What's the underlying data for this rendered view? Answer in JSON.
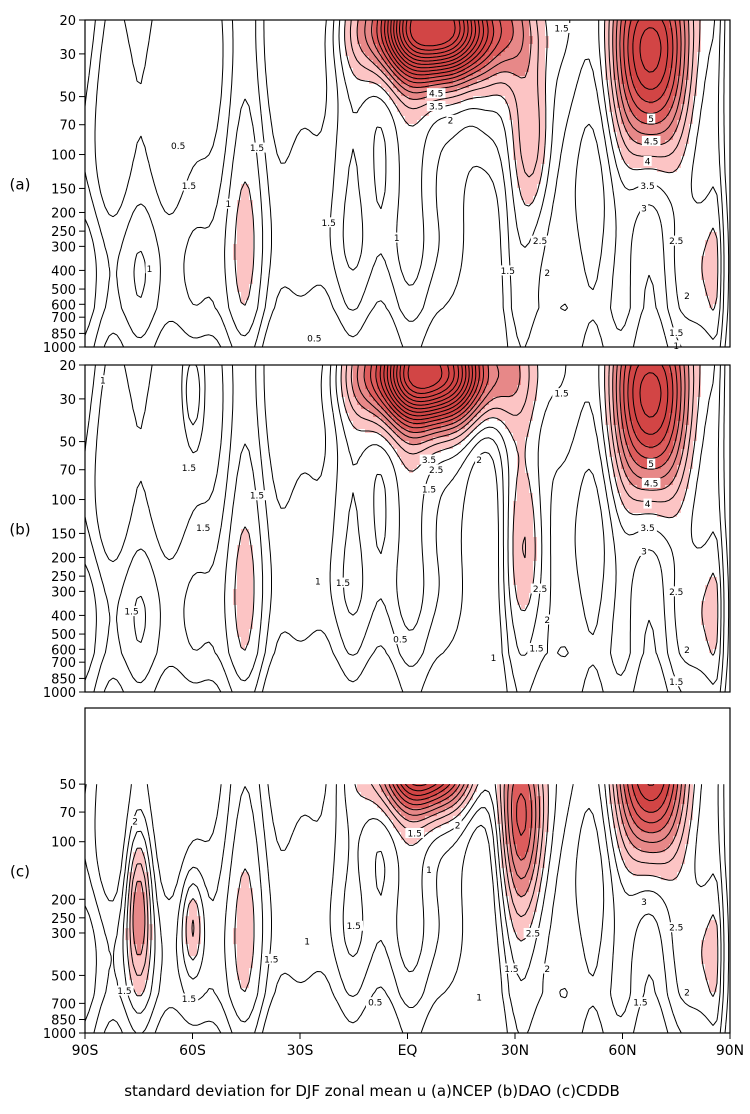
{
  "caption": "standard deviation for DJF zonal mean u (a)NCEP (b)DAO (c)CDDB",
  "colors": {
    "frame": "#000000",
    "contour": "#000000",
    "fill_levels": [
      {
        "min": 2,
        "color": "#fcc4c4"
      },
      {
        "min": 3,
        "color": "#e78888"
      },
      {
        "min": 4,
        "color": "#dd5c5c"
      },
      {
        "min": 5,
        "color": "#d24545"
      }
    ]
  },
  "chart_data": {
    "type": "contour",
    "variable": "standard deviation of DJF zonal mean u",
    "contour_interval": 0.5,
    "shading": "values >= 2 shaded in graduated reds",
    "x_ticks": [
      {
        "lat": -90,
        "label": "90S"
      },
      {
        "lat": -60,
        "label": "60S"
      },
      {
        "lat": -30,
        "label": "30S"
      },
      {
        "lat": 0,
        "label": "EQ"
      },
      {
        "lat": 30,
        "label": "30N"
      },
      {
        "lat": 60,
        "label": "60N"
      },
      {
        "lat": 90,
        "label": "90N"
      }
    ],
    "xlim": [
      -90,
      90
    ],
    "y_axis": "pressure (log scale, reversed)",
    "panels": [
      {
        "id": "a",
        "label": "(a)",
        "ylim": [
          1000,
          20
        ],
        "y_ticks": [
          "20",
          "30",
          "50",
          "70",
          "100",
          "150",
          "200",
          "250",
          "300",
          "400",
          "500",
          "600",
          "700",
          "850",
          "1000"
        ],
        "data_top_p": 20,
        "blobs": [
          {
            "lat": 8,
            "p": 22,
            "w": 18,
            "hu": 1.05,
            "hd": 0.62,
            "amp": 9.5,
            "tilt": 0
          },
          {
            "lat": 68,
            "p": 30,
            "w": 10,
            "hu": 1.2,
            "hd": 1.4,
            "amp": 6.4,
            "tilt": 0
          },
          {
            "lat": 35,
            "p": 90,
            "w": 5.5,
            "hu": 1.0,
            "hd": 1.0,
            "amp": 1.7,
            "tilt": 0
          },
          {
            "lat": 22,
            "p": 60,
            "w": 5,
            "hu": 1.0,
            "hd": 1.2,
            "amp": 1.0,
            "tilt": 0
          }
        ],
        "labels": [
          {
            "lat": 8,
            "p": 48,
            "text": "4.5"
          },
          {
            "lat": 8,
            "p": 56,
            "text": "3.5"
          },
          {
            "lat": 12,
            "p": 66,
            "text": "2"
          },
          {
            "lat": 68,
            "p": 65,
            "text": "5"
          },
          {
            "lat": 68,
            "p": 85,
            "text": "4.5"
          },
          {
            "lat": 67,
            "p": 108,
            "text": "4"
          },
          {
            "lat": 67,
            "p": 145,
            "text": "3.5"
          },
          {
            "lat": 66,
            "p": 190,
            "text": "3"
          },
          {
            "lat": 75,
            "p": 280,
            "text": "2.5"
          },
          {
            "lat": 37,
            "p": 280,
            "text": "2.5"
          },
          {
            "lat": 39,
            "p": 410,
            "text": "2"
          },
          {
            "lat": 78,
            "p": 540,
            "text": "2"
          },
          {
            "lat": 28,
            "p": 400,
            "text": "1.5"
          },
          {
            "lat": 75,
            "p": 840,
            "text": "1.5"
          },
          {
            "lat": 43,
            "p": 22,
            "text": "1.5"
          },
          {
            "lat": -42,
            "p": 92,
            "text": "1.5"
          },
          {
            "lat": -61,
            "p": 145,
            "text": "1.5"
          },
          {
            "lat": -22,
            "p": 225,
            "text": "1.5"
          },
          {
            "lat": -64,
            "p": 90,
            "text": "0.5"
          },
          {
            "lat": -3,
            "p": 270,
            "text": "1"
          },
          {
            "lat": -72,
            "p": 390,
            "text": "1"
          },
          {
            "lat": -50,
            "p": 180,
            "text": "1"
          },
          {
            "lat": -26,
            "p": 900,
            "text": "0.5"
          },
          {
            "lat": 75,
            "p": 980,
            "text": "1"
          }
        ]
      },
      {
        "id": "b",
        "label": "(b)",
        "ylim": [
          1000,
          20
        ],
        "y_ticks": [
          "20",
          "30",
          "50",
          "70",
          "100",
          "150",
          "200",
          "250",
          "300",
          "400",
          "500",
          "600",
          "700",
          "850",
          "1000"
        ],
        "data_top_p": 20,
        "blobs": [
          {
            "lat": 6,
            "p": 22,
            "w": 18,
            "hu": 1.05,
            "hd": 0.62,
            "amp": 9.0,
            "tilt": 0
          },
          {
            "lat": 68,
            "p": 30,
            "w": 10,
            "hu": 1.2,
            "hd": 1.4,
            "amp": 6.4,
            "tilt": 0
          },
          {
            "lat": 33,
            "p": 180,
            "w": 6,
            "hu": 1.0,
            "hd": 1.0,
            "amp": 1.4,
            "tilt": 0
          },
          {
            "lat": -60,
            "p": 28,
            "w": 3,
            "hu": 0.5,
            "hd": 0.6,
            "amp": 1.3,
            "tilt": 0
          }
        ],
        "labels": [
          {
            "lat": 6,
            "p": 62,
            "text": "3.5"
          },
          {
            "lat": 8,
            "p": 70,
            "text": "2.5"
          },
          {
            "lat": 20,
            "p": 62,
            "text": "2"
          },
          {
            "lat": 68,
            "p": 65,
            "text": "5"
          },
          {
            "lat": 68,
            "p": 82,
            "text": "4.5"
          },
          {
            "lat": 67,
            "p": 105,
            "text": "4"
          },
          {
            "lat": 67,
            "p": 140,
            "text": "3.5"
          },
          {
            "lat": 66,
            "p": 185,
            "text": "3"
          },
          {
            "lat": 75,
            "p": 300,
            "text": "2.5"
          },
          {
            "lat": 37,
            "p": 290,
            "text": "2.5"
          },
          {
            "lat": 39,
            "p": 420,
            "text": "2"
          },
          {
            "lat": 78,
            "p": 600,
            "text": "2"
          },
          {
            "lat": 6,
            "p": 88,
            "text": "1.5"
          },
          {
            "lat": -42,
            "p": 95,
            "text": "1.5"
          },
          {
            "lat": -57,
            "p": 140,
            "text": "1.5"
          },
          {
            "lat": -18,
            "p": 270,
            "text": "1.5"
          },
          {
            "lat": -77,
            "p": 380,
            "text": "1.5"
          },
          {
            "lat": 36,
            "p": 590,
            "text": "1.5"
          },
          {
            "lat": 75,
            "p": 880,
            "text": "1.5"
          },
          {
            "lat": 43,
            "p": 28,
            "text": "1.5"
          },
          {
            "lat": -61,
            "p": 68,
            "text": "1.5"
          },
          {
            "lat": -85,
            "p": 24,
            "text": "1"
          },
          {
            "lat": -25,
            "p": 265,
            "text": "1"
          },
          {
            "lat": -2,
            "p": 530,
            "text": "0.5"
          },
          {
            "lat": 24,
            "p": 660,
            "text": "1"
          }
        ]
      },
      {
        "id": "c",
        "label": "(c)",
        "ylim": [
          1000,
          20
        ],
        "y_ticks": [
          "50",
          "70",
          "100",
          "200",
          "250",
          "300",
          "500",
          "700",
          "850",
          "1000"
        ],
        "data_top_p": 50,
        "blobs": [
          {
            "lat": 5,
            "p": 40,
            "w": 14,
            "hu": 1.0,
            "hd": 0.55,
            "amp": 6.0,
            "tilt": 0
          },
          {
            "lat": 68,
            "p": 40,
            "w": 9.5,
            "hu": 1.2,
            "hd": 1.3,
            "amp": 6.6,
            "tilt": 0
          },
          {
            "lat": 32,
            "p": 80,
            "w": 7,
            "hu": 1.0,
            "hd": 1.2,
            "amp": 3.2,
            "tilt": 0
          },
          {
            "lat": -75,
            "p": 200,
            "w": 3.5,
            "hu": 0.9,
            "hd": 1.0,
            "amp": 2.3,
            "tilt": 0
          },
          {
            "lat": -60,
            "p": 270,
            "w": 3,
            "hu": 0.6,
            "hd": 0.6,
            "amp": 1.5,
            "tilt": 0
          }
        ],
        "labels": [
          {
            "lat": 14,
            "p": 82,
            "text": "2"
          },
          {
            "lat": 2,
            "p": 90,
            "text": "1.5"
          },
          {
            "lat": -76,
            "p": 78,
            "text": "2"
          },
          {
            "lat": 66,
            "p": 205,
            "text": "3"
          },
          {
            "lat": 75,
            "p": 280,
            "text": "2.5"
          },
          {
            "lat": 35,
            "p": 300,
            "text": "2.5"
          },
          {
            "lat": 39,
            "p": 460,
            "text": "2"
          },
          {
            "lat": 78,
            "p": 610,
            "text": "2"
          },
          {
            "lat": 29,
            "p": 460,
            "text": "1.5"
          },
          {
            "lat": 65,
            "p": 690,
            "text": "1.5"
          },
          {
            "lat": -38,
            "p": 410,
            "text": "1.5"
          },
          {
            "lat": -79,
            "p": 600,
            "text": "1.5"
          },
          {
            "lat": -61,
            "p": 660,
            "text": "1.5"
          },
          {
            "lat": -15,
            "p": 275,
            "text": "1.5"
          },
          {
            "lat": -28,
            "p": 330,
            "text": "1"
          },
          {
            "lat": 6,
            "p": 140,
            "text": "1"
          },
          {
            "lat": 20,
            "p": 650,
            "text": "1"
          },
          {
            "lat": -9,
            "p": 690,
            "text": "0.5"
          }
        ]
      }
    ]
  }
}
